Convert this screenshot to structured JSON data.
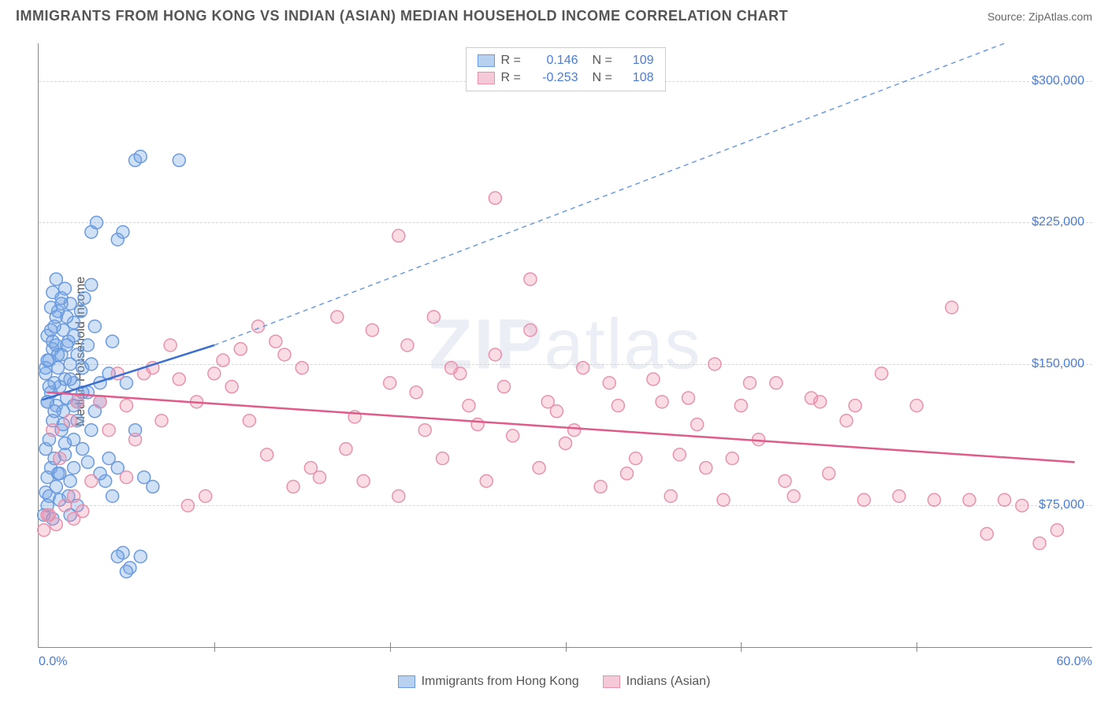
{
  "title": "IMMIGRANTS FROM HONG KONG VS INDIAN (ASIAN) MEDIAN HOUSEHOLD INCOME CORRELATION CHART",
  "source": "Source: ZipAtlas.com",
  "ylabel": "Median Household Income",
  "watermark_a": "ZIP",
  "watermark_b": "atlas",
  "chart": {
    "type": "scatter",
    "xlim": [
      0,
      60
    ],
    "ylim": [
      0,
      320000
    ],
    "xticks": [
      {
        "v": 0,
        "label": "0.0%"
      },
      {
        "v": 60,
        "label": "60.0%"
      }
    ],
    "xminor": [
      10,
      20,
      30,
      40,
      50
    ],
    "yticks": [
      {
        "v": 75000,
        "label": "$75,000"
      },
      {
        "v": 150000,
        "label": "$150,000"
      },
      {
        "v": 225000,
        "label": "$225,000"
      },
      {
        "v": 300000,
        "label": "$300,000"
      }
    ],
    "background_color": "#ffffff",
    "grid_color": "#d4d4d4",
    "marker_radius": 8,
    "marker_stroke_width": 1.5,
    "series": [
      {
        "name": "Immigrants from Hong Kong",
        "fill": "rgba(120,165,225,0.35)",
        "stroke": "#6a9be0",
        "swatch_fill": "#b9d1f0",
        "swatch_stroke": "#6a9be0",
        "R": "0.146",
        "N": "109",
        "regression": {
          "x1": 0.2,
          "y1": 131000,
          "x2": 10,
          "y2": 160000,
          "color": "#3a6fd0",
          "width": 2.5,
          "dash": "none"
        },
        "extension": {
          "x1": 10,
          "y1": 160000,
          "x2": 55,
          "y2": 320000,
          "color": "#6a9be0",
          "width": 1.5,
          "dash": "6,5"
        },
        "points": [
          [
            0.3,
            70000
          ],
          [
            0.5,
            75000
          ],
          [
            0.8,
            68000
          ],
          [
            0.4,
            82000
          ],
          [
            0.6,
            80000
          ],
          [
            0.5,
            90000
          ],
          [
            1.0,
            85000
          ],
          [
            1.2,
            78000
          ],
          [
            0.7,
            95000
          ],
          [
            0.9,
            100000
          ],
          [
            1.1,
            92000
          ],
          [
            0.4,
            105000
          ],
          [
            1.5,
            102000
          ],
          [
            1.8,
            88000
          ],
          [
            2.0,
            95000
          ],
          [
            0.6,
            110000
          ],
          [
            1.3,
            115000
          ],
          [
            0.8,
            120000
          ],
          [
            1.0,
            128000
          ],
          [
            1.4,
            125000
          ],
          [
            0.5,
            130000
          ],
          [
            1.6,
            132000
          ],
          [
            2.2,
            130000
          ],
          [
            0.7,
            135000
          ],
          [
            1.2,
            138000
          ],
          [
            0.9,
            140000
          ],
          [
            1.5,
            142000
          ],
          [
            2.0,
            140000
          ],
          [
            0.4,
            145000
          ],
          [
            1.1,
            148000
          ],
          [
            1.8,
            150000
          ],
          [
            2.5,
            148000
          ],
          [
            0.6,
            152000
          ],
          [
            3.0,
            150000
          ],
          [
            1.3,
            155000
          ],
          [
            0.8,
            158000
          ],
          [
            2.2,
            155000
          ],
          [
            3.5,
            130000
          ],
          [
            1.0,
            160000
          ],
          [
            1.7,
            162000
          ],
          [
            4.0,
            100000
          ],
          [
            0.5,
            165000
          ],
          [
            2.8,
            160000
          ],
          [
            4.5,
            95000
          ],
          [
            1.4,
            168000
          ],
          [
            5.0,
            140000
          ],
          [
            0.9,
            170000
          ],
          [
            2.0,
            172000
          ],
          [
            5.5,
            115000
          ],
          [
            1.6,
            175000
          ],
          [
            3.2,
            170000
          ],
          [
            6.0,
            90000
          ],
          [
            1.1,
            178000
          ],
          [
            0.7,
            180000
          ],
          [
            2.4,
            178000
          ],
          [
            6.5,
            85000
          ],
          [
            1.8,
            182000
          ],
          [
            4.2,
            80000
          ],
          [
            1.3,
            185000
          ],
          [
            3.8,
            88000
          ],
          [
            0.8,
            188000
          ],
          [
            2.6,
            185000
          ],
          [
            5.2,
            42000
          ],
          [
            1.5,
            190000
          ],
          [
            4.8,
            50000
          ],
          [
            1.0,
            195000
          ],
          [
            3.0,
            192000
          ],
          [
            5.8,
            48000
          ],
          [
            2.2,
            75000
          ],
          [
            1.2,
            92000
          ],
          [
            0.5,
            130000
          ],
          [
            1.7,
            80000
          ],
          [
            2.8,
            135000
          ],
          [
            3.5,
            140000
          ],
          [
            0.9,
            125000
          ],
          [
            4.0,
            145000
          ],
          [
            1.4,
            118000
          ],
          [
            2.0,
            128000
          ],
          [
            0.6,
            138000
          ],
          [
            3.2,
            125000
          ],
          [
            1.8,
            142000
          ],
          [
            0.4,
            148000
          ],
          [
            2.5,
            135000
          ],
          [
            1.1,
            155000
          ],
          [
            0.8,
            162000
          ],
          [
            3.0,
            220000
          ],
          [
            3.3,
            225000
          ],
          [
            4.5,
            216000
          ],
          [
            4.8,
            220000
          ],
          [
            5.5,
            258000
          ],
          [
            5.8,
            260000
          ],
          [
            8.0,
            258000
          ],
          [
            4.2,
            162000
          ],
          [
            2.8,
            98000
          ],
          [
            3.5,
            92000
          ],
          [
            2.0,
            110000
          ],
          [
            2.5,
            105000
          ],
          [
            3.0,
            115000
          ],
          [
            1.5,
            108000
          ],
          [
            2.2,
            120000
          ],
          [
            0.7,
            168000
          ],
          [
            1.0,
            175000
          ],
          [
            1.3,
            182000
          ],
          [
            1.6,
            160000
          ],
          [
            0.5,
            152000
          ],
          [
            2.0,
            165000
          ],
          [
            1.8,
            70000
          ],
          [
            5.0,
            40000
          ],
          [
            4.5,
            48000
          ]
        ]
      },
      {
        "name": "Indians (Asian)",
        "fill": "rgba(240,140,170,0.3)",
        "stroke": "#e892ae",
        "swatch_fill": "#f5c9d7",
        "swatch_stroke": "#e892ae",
        "R": "-0.253",
        "N": "108",
        "regression": {
          "x1": 0.5,
          "y1": 135000,
          "x2": 59,
          "y2": 98000,
          "color": "#e05a8a",
          "width": 2.5,
          "dash": "none"
        },
        "points": [
          [
            0.5,
            70000
          ],
          [
            1.0,
            65000
          ],
          [
            1.5,
            75000
          ],
          [
            2.0,
            80000
          ],
          [
            2.5,
            72000
          ],
          [
            3.0,
            88000
          ],
          [
            1.2,
            100000
          ],
          [
            0.8,
            115000
          ],
          [
            1.8,
            120000
          ],
          [
            2.2,
            130000
          ],
          [
            5.0,
            90000
          ],
          [
            5.5,
            110000
          ],
          [
            6.0,
            145000
          ],
          [
            6.5,
            148000
          ],
          [
            7.0,
            120000
          ],
          [
            7.5,
            160000
          ],
          [
            8.0,
            142000
          ],
          [
            9.0,
            130000
          ],
          [
            10.0,
            145000
          ],
          [
            11.0,
            138000
          ],
          [
            12.0,
            120000
          ],
          [
            12.5,
            170000
          ],
          [
            13.0,
            102000
          ],
          [
            14.0,
            155000
          ],
          [
            15.0,
            148000
          ],
          [
            16.0,
            90000
          ],
          [
            17.0,
            175000
          ],
          [
            18.0,
            122000
          ],
          [
            19.0,
            168000
          ],
          [
            20.0,
            140000
          ],
          [
            20.5,
            80000
          ],
          [
            21.0,
            160000
          ],
          [
            22.0,
            115000
          ],
          [
            22.5,
            175000
          ],
          [
            23.0,
            100000
          ],
          [
            24.0,
            145000
          ],
          [
            25.0,
            118000
          ],
          [
            25.5,
            88000
          ],
          [
            26.0,
            155000
          ],
          [
            27.0,
            112000
          ],
          [
            28.0,
            168000
          ],
          [
            28.5,
            95000
          ],
          [
            29.0,
            130000
          ],
          [
            30.0,
            108000
          ],
          [
            31.0,
            148000
          ],
          [
            32.0,
            85000
          ],
          [
            33.0,
            128000
          ],
          [
            34.0,
            100000
          ],
          [
            35.0,
            142000
          ],
          [
            36.0,
            80000
          ],
          [
            37.0,
            132000
          ],
          [
            38.0,
            95000
          ],
          [
            38.5,
            150000
          ],
          [
            39.0,
            78000
          ],
          [
            40.0,
            128000
          ],
          [
            41.0,
            110000
          ],
          [
            42.0,
            140000
          ],
          [
            43.0,
            80000
          ],
          [
            44.0,
            132000
          ],
          [
            45.0,
            92000
          ],
          [
            46.0,
            120000
          ],
          [
            47.0,
            78000
          ],
          [
            48.0,
            145000
          ],
          [
            49.0,
            80000
          ],
          [
            50.0,
            128000
          ],
          [
            51.0,
            78000
          ],
          [
            52.0,
            180000
          ],
          [
            53.0,
            78000
          ],
          [
            54.0,
            60000
          ],
          [
            55.0,
            78000
          ],
          [
            56.0,
            75000
          ],
          [
            57.0,
            55000
          ],
          [
            58.0,
            62000
          ],
          [
            28.0,
            195000
          ],
          [
            26.0,
            238000
          ],
          [
            20.5,
            218000
          ],
          [
            10.5,
            152000
          ],
          [
            11.5,
            158000
          ],
          [
            13.5,
            162000
          ],
          [
            8.5,
            75000
          ],
          [
            9.5,
            80000
          ],
          [
            14.5,
            85000
          ],
          [
            15.5,
            95000
          ],
          [
            17.5,
            105000
          ],
          [
            18.5,
            88000
          ],
          [
            21.5,
            135000
          ],
          [
            23.5,
            148000
          ],
          [
            24.5,
            128000
          ],
          [
            26.5,
            138000
          ],
          [
            29.5,
            125000
          ],
          [
            30.5,
            115000
          ],
          [
            32.5,
            140000
          ],
          [
            33.5,
            92000
          ],
          [
            35.5,
            130000
          ],
          [
            36.5,
            102000
          ],
          [
            37.5,
            118000
          ],
          [
            39.5,
            100000
          ],
          [
            40.5,
            140000
          ],
          [
            42.5,
            88000
          ],
          [
            44.5,
            130000
          ],
          [
            46.5,
            128000
          ],
          [
            2.0,
            68000
          ],
          [
            3.5,
            130000
          ],
          [
            4.0,
            115000
          ],
          [
            4.5,
            145000
          ],
          [
            5.0,
            128000
          ],
          [
            0.3,
            62000
          ],
          [
            0.6,
            70000
          ]
        ]
      }
    ]
  },
  "legend_bottom": [
    {
      "key": 0
    },
    {
      "key": 1
    }
  ]
}
